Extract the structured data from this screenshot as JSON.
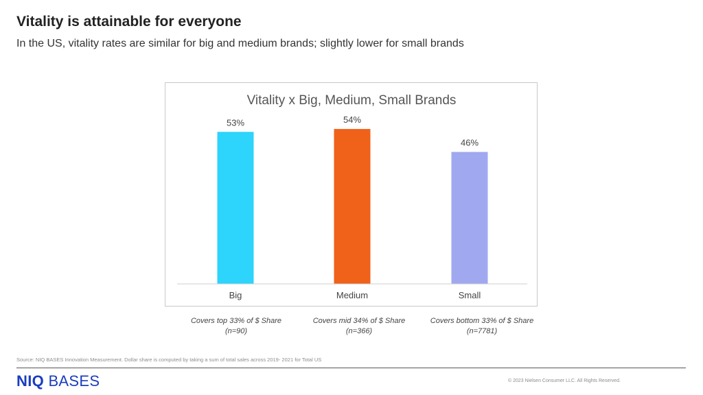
{
  "header": {
    "title": "Vitality is attainable for everyone",
    "subtitle": "In the US, vitality rates are similar for big and medium brands; slightly lower for small brands"
  },
  "chart_data": {
    "type": "bar",
    "title": "Vitality x Big, Medium, Small Brands",
    "categories": [
      "Big",
      "Medium",
      "Small"
    ],
    "values": [
      53,
      54,
      46
    ],
    "value_labels": [
      "53%",
      "54%",
      "46%"
    ],
    "colors": [
      "#2dd4fb",
      "#f0611a",
      "#a0a8f0"
    ],
    "ylim": [
      0,
      60
    ],
    "grid": false,
    "legend": "none"
  },
  "footnotes": [
    {
      "line1": "Covers top 33% of $ Share",
      "line2": "(n=90)"
    },
    {
      "line1": "Covers mid 34% of $ Share",
      "line2": "(n=366)"
    },
    {
      "line1": "Covers bottom 33% of $ Share",
      "line2": "(n=7781)"
    }
  ],
  "footer": {
    "source": "Source:  NIQ BASES Innovation Measurement. Dollar share is computed by taking a sum of total sales across 2019- 2021 for Total US",
    "logo_bold": "NIQ",
    "logo_rest": "BASES",
    "copyright": "© 2023 Nielsen Consumer LLC. All Rights Reserved.",
    "brand_color": "#1a3dbf"
  }
}
